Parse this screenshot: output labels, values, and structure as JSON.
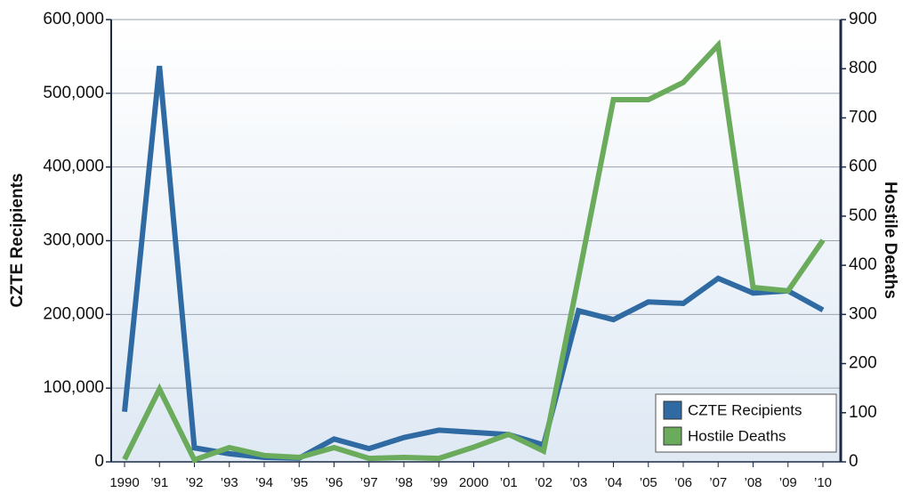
{
  "chart_data": {
    "type": "line",
    "categories": [
      "1990",
      "’91",
      "’92",
      "’93",
      "’94",
      "’95",
      "’96",
      "’97",
      "’98",
      "’99",
      "2000",
      "’01",
      "’02",
      "’03",
      "’04",
      "’05",
      "’06",
      "’07",
      "’08",
      "’09",
      "’10"
    ],
    "ylabel": "CZTE Recipients",
    "y2label": "Hostile Deaths",
    "ylim": [
      0,
      600000
    ],
    "yticks": [
      0,
      {
        "value": 100000,
        "label": "100,000"
      },
      {
        "value": 200000,
        "label": "200,000"
      },
      {
        "value": 300000,
        "label": "300,000"
      },
      {
        "value": 400000,
        "label": "400,000"
      },
      {
        "value": 500000,
        "label": "500,000"
      },
      {
        "value": 600000,
        "label": "600,000"
      }
    ],
    "y2lim": [
      0,
      900
    ],
    "y2ticks": [
      0,
      100,
      200,
      300,
      400,
      500,
      600,
      700,
      800,
      900
    ],
    "grid": true,
    "legend": "lower right",
    "series": [
      {
        "name": "CZTE Recipients",
        "color": "#2f6aa3",
        "values": [
          68000,
          537000,
          19000,
          11000,
          6000,
          5000,
          31000,
          18000,
          33000,
          43000,
          40000,
          37000,
          23000,
          205000,
          193000,
          217000,
          215000,
          249000,
          229000,
          232000,
          206000
        ]
      },
      {
        "name": "Hostile Deaths",
        "color": "#6aab5c",
        "axis": "y2",
        "values": [
          5,
          148,
          4,
          29,
          13,
          9,
          29,
          7,
          9,
          7,
          30,
          56,
          22,
          375,
          737,
          737,
          772,
          848,
          355,
          348,
          451
        ]
      }
    ]
  }
}
